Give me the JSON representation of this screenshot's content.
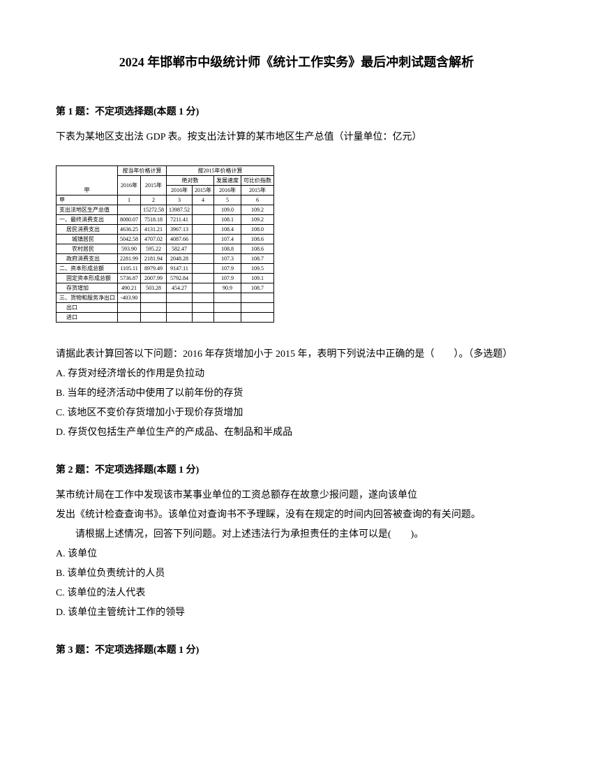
{
  "title": "2024 年邯郸市中级统计师《统计工作实务》最后冲刺试题含解析",
  "q1": {
    "header": "第 1 题：不定项选择题(本题 1 分)",
    "intro": "下表为某地区支出法 GDP 表。按支出法计算的某市地区生产总值（计量单位：亿元）",
    "prompt": "请据此表计算回答以下问题：2016 年存货增加小于 2015 年，表明下列说法中正确的是（　　）。（多选题）",
    "optA": "A. 存货对经济增长的作用是负拉动",
    "optB": "B. 当年的经济活动中使用了以前年份的存货",
    "optC": "C. 该地区不变价存货增加小于现价存货增加",
    "optD": "D. 存货仅包括生产单位生产的产成品、在制品和半成品"
  },
  "q2": {
    "header": "第 2 题：不定项选择题(本题 1 分)",
    "line1": "某市统计局在工作中发现该市某事业单位的工资总额存在故意少报问题，遂向该单位",
    "line2": "发出《统计检查查询书》。该单位对查询书不予理睬，没有在规定的时间内回答被查询的有关问题。",
    "line3": "请根据上述情况，回答下列问题。对上述违法行为承担责任的主体可以是(　　)。",
    "optA": "A. 该单位",
    "optB": "B. 该单位负责统计的人员",
    "optC": "C. 该单位的法人代表",
    "optD": "D. 该单位主管统计工作的领导"
  },
  "q3": {
    "header": "第 3 题：不定项选择题(本题 1 分)"
  },
  "table": {
    "header": {
      "blank": "",
      "col1": "按当年价格计算",
      "col2": "按2015年价格计算",
      "sub_2016": "2016年",
      "sub_2015": "2015年",
      "sub_abs": "绝对数",
      "sub_idx1": "发展速度",
      "sub_idx2": "可比价指数",
      "y2016": "2016年",
      "y2015": "2015年",
      "jia": "甲",
      "n1": "1",
      "n2": "2",
      "n3": "3",
      "n4": "4",
      "n5": "5",
      "n6": "6"
    },
    "rows": [
      {
        "label": "支出法地区生产总值",
        "cls": "left",
        "v1": "",
        "v2": "15272.58",
        "v3": "13987.52",
        "v4": "",
        "v5": "109.0",
        "v6": "109.2"
      },
      {
        "label": "一、最终消费支出",
        "cls": "left",
        "v1": "8080.07",
        "v2": "7518.18",
        "v3": "7211.41",
        "v4": "",
        "v5": "108.1",
        "v6": "109.2"
      },
      {
        "label": "居民消费支出",
        "cls": "subleft",
        "v1": "4636.25",
        "v2": "4131.21",
        "v3": "3967.13",
        "v4": "",
        "v5": "108.4",
        "v6": "108.0"
      },
      {
        "label": "城镇居民",
        "cls": "subsubleft",
        "v1": "5042.58",
        "v2": "4707.02",
        "v3": "4087.66",
        "v4": "",
        "v5": "107.4",
        "v6": "108.6"
      },
      {
        "label": "农村居民",
        "cls": "subsubleft",
        "v1": "593.90",
        "v2": "595.22",
        "v3": "582.47",
        "v4": "",
        "v5": "108.8",
        "v6": "108.6"
      },
      {
        "label": "政府消费支出",
        "cls": "subleft",
        "v1": "2281.99",
        "v2": "2181.94",
        "v3": "2048.28",
        "v4": "",
        "v5": "107.3",
        "v6": "108.7"
      },
      {
        "label": "二、资本形成总额",
        "cls": "left",
        "v1": "1105.11",
        "v2": "8979.49",
        "v3": "9147.11",
        "v4": "",
        "v5": "107.9",
        "v6": "109.5"
      },
      {
        "label": "固定资本形成总额",
        "cls": "subleft",
        "v1": "5736.87",
        "v2": "2007.99",
        "v3": "5792.84",
        "v4": "",
        "v5": "107.9",
        "v6": "109.1"
      },
      {
        "label": "存货增加",
        "cls": "subleft",
        "v1": "490.21",
        "v2": "503.28",
        "v3": "454.27",
        "v4": "",
        "v5": "90.9",
        "v6": "108.7"
      },
      {
        "label": "三、货物和服务净出口",
        "cls": "left",
        "v1": "-403.90",
        "v2": "",
        "v3": "",
        "v4": "",
        "v5": "",
        "v6": ""
      },
      {
        "label": "出口",
        "cls": "subleft",
        "v1": "",
        "v2": "",
        "v3": "",
        "v4": "",
        "v5": "",
        "v6": ""
      },
      {
        "label": "进口",
        "cls": "subleft",
        "v1": "",
        "v2": "",
        "v3": "",
        "v4": "",
        "v5": "",
        "v6": ""
      }
    ]
  }
}
